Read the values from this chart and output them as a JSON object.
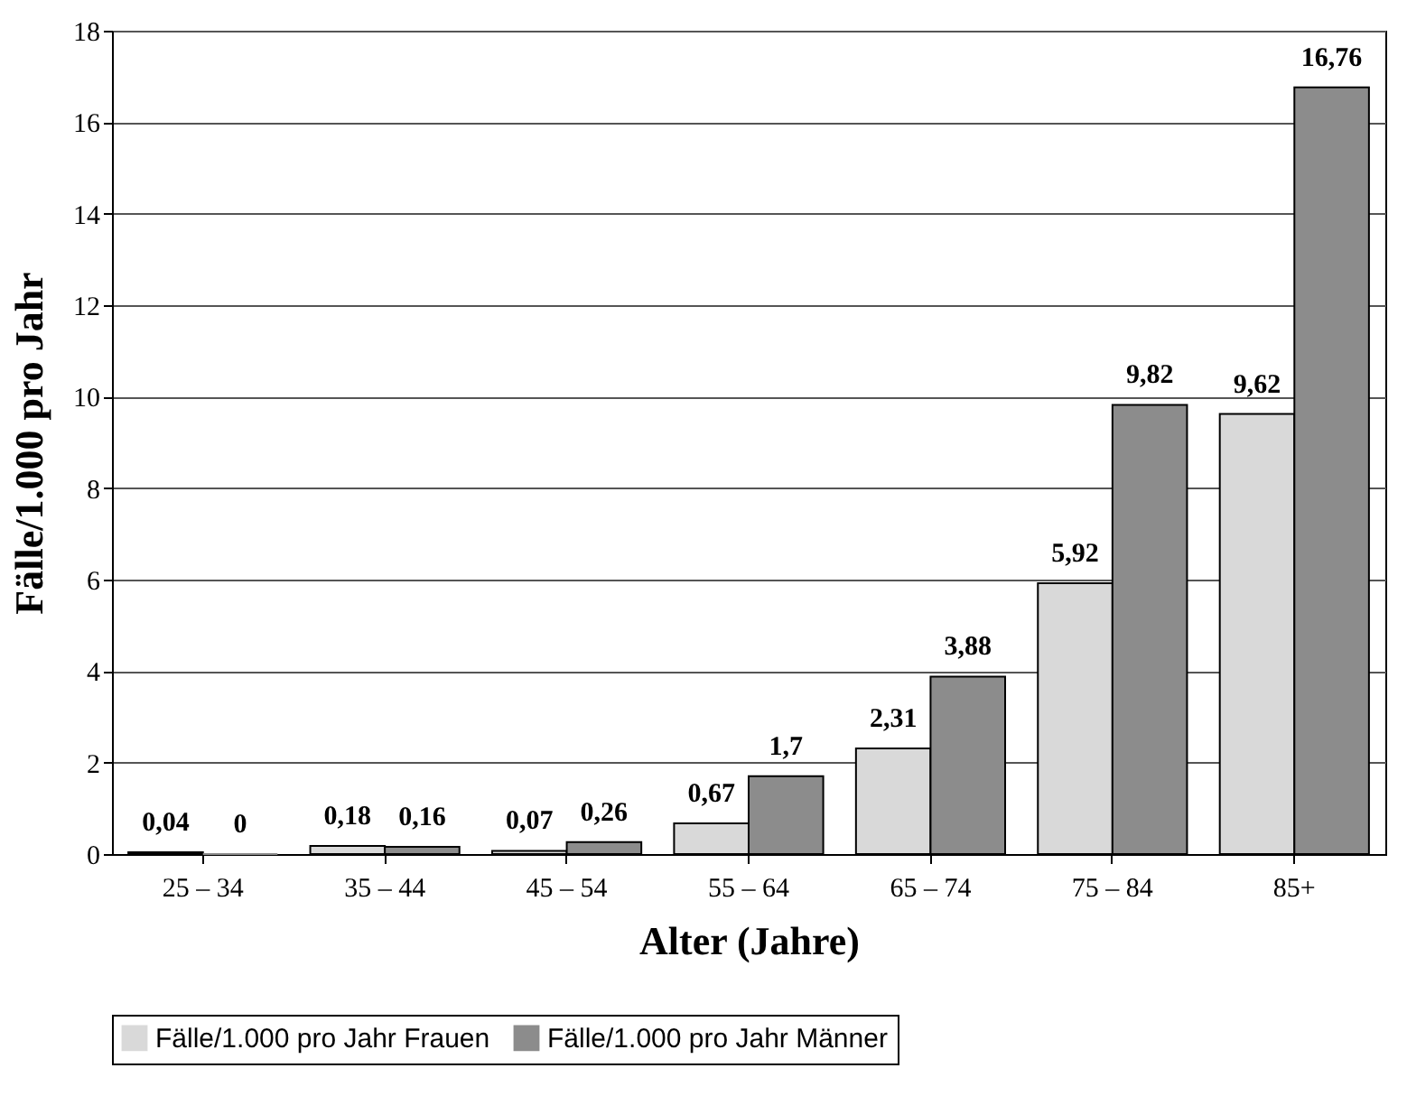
{
  "chart_data": {
    "type": "bar",
    "xlabel": "Alter (Jahre)",
    "ylabel": "Fälle/1.000 pro Jahr",
    "categories": [
      "25 – 34",
      "35 – 44",
      "45 – 54",
      "55 – 64",
      "65 – 74",
      "75 – 84",
      "85+"
    ],
    "series": [
      {
        "name": "Fälle/1.000 pro Jahr Frauen",
        "color": "#d9d9d9",
        "values": [
          0.04,
          0.18,
          0.07,
          0.67,
          2.31,
          5.92,
          9.62
        ],
        "value_labels": [
          "0,04",
          "0,18",
          "0,07",
          "0,67",
          "2,31",
          "5,92",
          "9,62"
        ]
      },
      {
        "name": "Fälle/1.000 pro Jahr Männer",
        "color": "#8c8c8c",
        "values": [
          0,
          0.16,
          0.26,
          1.7,
          3.88,
          9.82,
          16.76
        ],
        "value_labels": [
          "0",
          "0,16",
          "0,26",
          "1,7",
          "3,88",
          "9,82",
          "16,76"
        ]
      }
    ],
    "ylim": [
      0,
      18
    ],
    "yticks": [
      0,
      2,
      4,
      6,
      8,
      10,
      12,
      14,
      16,
      18
    ],
    "grid": "y",
    "legend": "bottom"
  }
}
